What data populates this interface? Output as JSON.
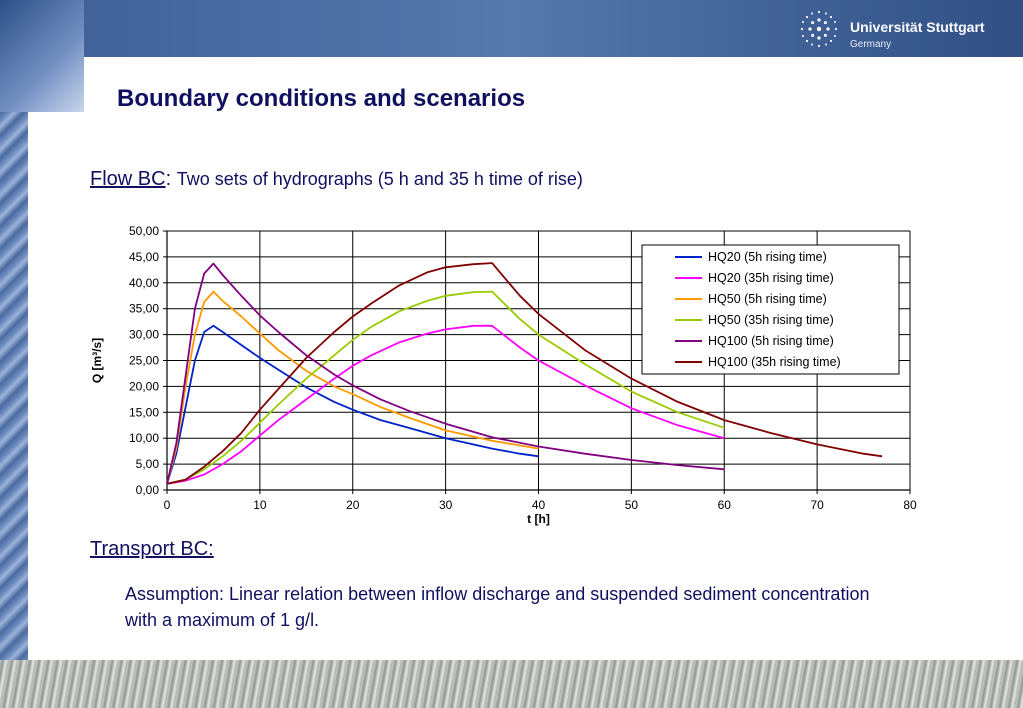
{
  "header": {
    "university": "Universität Stuttgart",
    "country": "Germany"
  },
  "slide": {
    "title": "Boundary conditions and scenarios",
    "flow_label": "Flow BC",
    "flow_colon": ":",
    "flow_desc": "Two sets of hydrographs (5 h and 35 h time of rise)",
    "transport_label": "Transport BC:",
    "assumption": "Assumption: Linear relation between inflow discharge and suspended sediment concentration with a maximum of 1 g/l."
  },
  "chart_data": {
    "type": "line",
    "title": "",
    "xlabel": "t [h]",
    "ylabel": "Q [m³/s]",
    "xlim": [
      0,
      80
    ],
    "ylim": [
      0,
      50
    ],
    "xticks": [
      0,
      10,
      20,
      30,
      40,
      50,
      60,
      70,
      80
    ],
    "xtick_labels": [
      "0",
      "10",
      "20",
      "30",
      "40",
      "50",
      "60",
      "70",
      "80"
    ],
    "yticks": [
      0,
      5,
      10,
      15,
      20,
      25,
      30,
      35,
      40,
      45,
      50
    ],
    "ytick_labels": [
      "0,00",
      "5,00",
      "10,00",
      "15,00",
      "20,00",
      "25,00",
      "30,00",
      "35,00",
      "40,00",
      "45,00",
      "50,00"
    ],
    "grid": true,
    "legend_position": "top-right",
    "series": [
      {
        "name": "HQ20 (5h rising time)",
        "color": "#0022cc",
        "x": [
          0,
          1,
          2,
          3,
          4,
          5,
          6,
          8,
          10,
          12,
          15,
          18,
          20,
          23,
          26,
          30,
          35,
          38,
          40
        ],
        "y": [
          1.2,
          7,
          16,
          25,
          30.5,
          31.7,
          30.5,
          28,
          25.5,
          23.2,
          19.8,
          17,
          15.5,
          13.5,
          12,
          10,
          8,
          7,
          6.5
        ]
      },
      {
        "name": "HQ20 (35h rising time)",
        "color": "#ff00ff",
        "x": [
          0,
          2,
          4,
          6,
          8,
          10,
          12,
          15,
          18,
          20,
          22,
          25,
          28,
          30,
          33,
          35,
          38,
          40,
          45,
          50,
          55,
          60
        ],
        "y": [
          1.2,
          1.8,
          3,
          5,
          7.5,
          10.5,
          13.5,
          17.5,
          21.5,
          24,
          26,
          28.5,
          30.2,
          31,
          31.7,
          31.7,
          27.5,
          25,
          20.2,
          15.8,
          12.5,
          10
        ]
      },
      {
        "name": "HQ50 (5h rising time)",
        "color": "#ff9900",
        "x": [
          0,
          1,
          2,
          3,
          4,
          5,
          6,
          8,
          10,
          12,
          15,
          18,
          20,
          23,
          26,
          30,
          35,
          40
        ],
        "y": [
          1.2,
          8,
          20,
          30,
          36.3,
          38.3,
          36.5,
          33.5,
          30.2,
          27,
          23,
          20,
          18.5,
          16,
          14,
          11.5,
          9.5,
          8
        ]
      },
      {
        "name": "HQ50 (35h rising time)",
        "color": "#99cc00",
        "x": [
          0,
          2,
          4,
          6,
          8,
          10,
          12,
          15,
          18,
          20,
          22,
          25,
          28,
          30,
          33,
          35,
          38,
          40,
          45,
          50,
          55,
          60
        ],
        "y": [
          1.2,
          2,
          4,
          6.5,
          9.5,
          13,
          16.5,
          21.5,
          26,
          29,
          31.5,
          34.5,
          36.5,
          37.5,
          38.2,
          38.3,
          33,
          30,
          24.3,
          19,
          15,
          12
        ]
      },
      {
        "name": "HQ100 (5h rising time)",
        "color": "#800080",
        "x": [
          0,
          1,
          2,
          3,
          4,
          5,
          6,
          8,
          10,
          12,
          15,
          18,
          20,
          23,
          26,
          30,
          35,
          40,
          45,
          50,
          55,
          60
        ],
        "y": [
          1.2,
          9,
          22,
          35,
          41.8,
          43.7,
          41.5,
          37.5,
          33.7,
          30.5,
          26,
          22.3,
          20.2,
          17.5,
          15.3,
          12.8,
          10.2,
          8.4,
          7,
          5.8,
          4.8,
          4
        ]
      },
      {
        "name": "HQ100 (35h rising time)",
        "color": "#800000",
        "x": [
          0,
          2,
          4,
          6,
          8,
          10,
          12,
          15,
          18,
          20,
          22,
          25,
          28,
          30,
          33,
          35,
          38,
          40,
          45,
          50,
          55,
          60,
          65,
          70,
          75,
          77
        ],
        "y": [
          1.2,
          2,
          4.5,
          7.5,
          11,
          15.5,
          19.5,
          25.5,
          30.5,
          33.5,
          36,
          39.5,
          42,
          43,
          43.6,
          43.8,
          37.5,
          34,
          27,
          21.5,
          17,
          13.5,
          11,
          8.8,
          7,
          6.5
        ]
      }
    ]
  }
}
